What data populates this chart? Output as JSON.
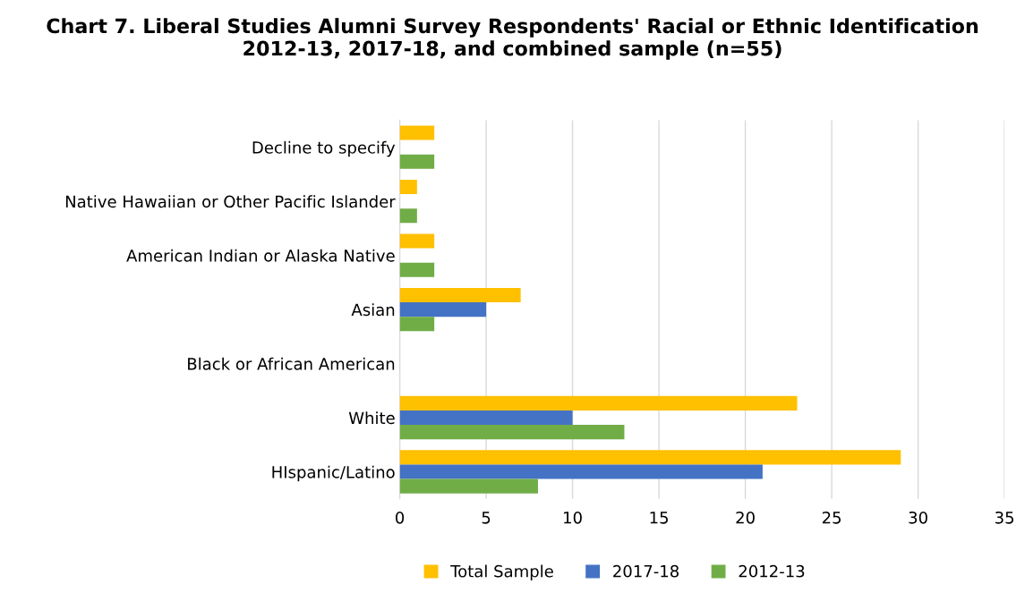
{
  "chart_data": {
    "type": "bar",
    "orientation": "horizontal",
    "title": "Chart 7. Liberal Studies Alumni Survey Respondents' Racial or Ethnic Identification 2012-13, 2017-18, and combined sample (n=55)",
    "categories": [
      "Decline to specify",
      "Native Hawaiian or Other Pacific Islander",
      "American Indian or Alaska Native",
      "Asian",
      "Black or African American",
      "White",
      "HIspanic/Latino"
    ],
    "series": [
      {
        "name": "Total Sample",
        "color": "#ffc000",
        "values": [
          2,
          1,
          2,
          7,
          0,
          23,
          29
        ]
      },
      {
        "name": "2017-18",
        "color": "#4472c4",
        "values": [
          0,
          0,
          0,
          5,
          0,
          10,
          21
        ]
      },
      {
        "name": "2012-13",
        "color": "#70ad47",
        "values": [
          2,
          1,
          2,
          2,
          0,
          13,
          8
        ]
      }
    ],
    "xlim": [
      0,
      35
    ],
    "xticks": [
      0,
      5,
      10,
      15,
      20,
      25,
      30,
      35
    ],
    "grid": "x",
    "legend": "bottom"
  }
}
